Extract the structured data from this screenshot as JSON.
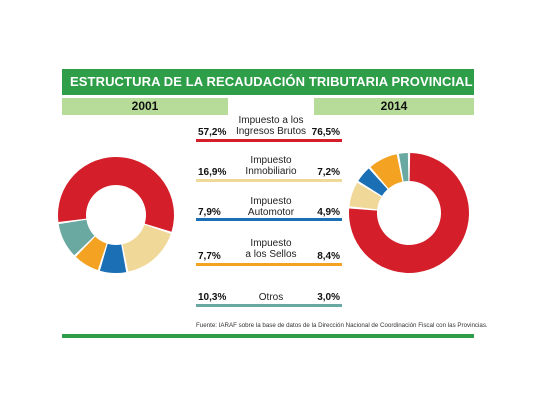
{
  "title": "ESTRUCTURA DE LA RECAUDACIÓN TRIBUTARIA PROVINCIAL",
  "source": "Fuente: IARAF sobre la base de datos de la Dirección Nacional de Coordinación Fiscal con las Provincias.",
  "chart_data": {
    "type": "pie",
    "title": "ESTRUCTURA DE LA RECAUDACIÓN TRIBUTARIA PROVINCIAL",
    "categories": [
      "Impuesto a los Ingresos Brutos",
      "Impuesto Inmobiliario",
      "Impuesto Automotor",
      "Impuesto a los Sellos",
      "Otros"
    ],
    "colors": [
      "#d41f2a",
      "#f0d898",
      "#1a6fb5",
      "#f3a221",
      "#6aa9a2"
    ],
    "series": [
      {
        "name": "2001",
        "values": [
          57.2,
          16.9,
          7.9,
          7.7,
          10.3
        ],
        "labels": [
          "57,2%",
          "16,9%",
          "7,9%",
          "7,7%",
          "10,3%"
        ]
      },
      {
        "name": "2014",
        "values": [
          76.5,
          7.2,
          4.9,
          8.4,
          3.0
        ],
        "labels": [
          "76,5%",
          "7,2%",
          "4,9%",
          "8,4%",
          "3,0%"
        ]
      }
    ]
  },
  "rows": [
    {
      "label1": "Impuesto a los",
      "label2": "Ingresos Brutos"
    },
    {
      "label1": "Impuesto",
      "label2": "Inmobiliario"
    },
    {
      "label1": "Impuesto",
      "label2": "Automotor"
    },
    {
      "label1": "Impuesto",
      "label2": "a los Sellos"
    },
    {
      "label1": "Otros",
      "label2": ""
    }
  ]
}
